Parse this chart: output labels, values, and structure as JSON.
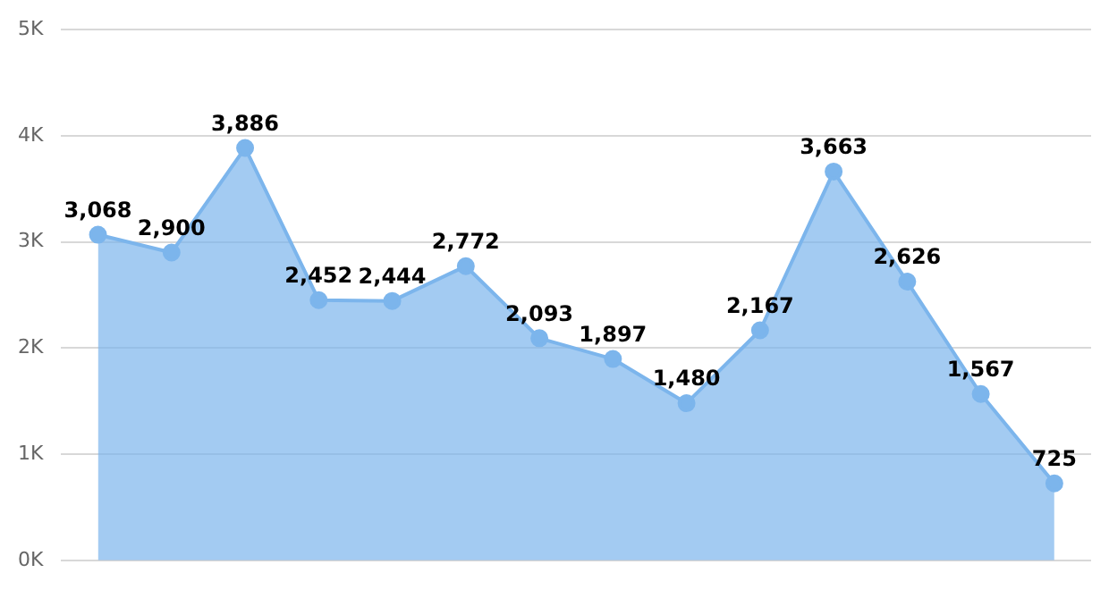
{
  "chart_data": {
    "type": "area",
    "categories": [
      null,
      null,
      null,
      null,
      null,
      null,
      null,
      null,
      null,
      null,
      null,
      null,
      null,
      null
    ],
    "series": [
      {
        "color": "#7cb5ec",
        "values": [
          3068,
          2900,
          3886,
          2452,
          2444,
          2772,
          2093,
          1897,
          1480,
          2167,
          3663,
          2626,
          1567,
          725
        ],
        "value_labels": [
          "3,068",
          "2,900",
          "3,886",
          "2,452",
          "2,444",
          "2,772",
          "2,093",
          "1,897",
          "1,480",
          "2,167",
          "3,663",
          "2,626",
          "1,567",
          "725"
        ]
      }
    ],
    "ylim": [
      0,
      5000
    ],
    "yticks": [
      {
        "value": 0,
        "label": "0K"
      },
      {
        "value": 1000,
        "label": "1K"
      },
      {
        "value": 2000,
        "label": "2K"
      },
      {
        "value": 3000,
        "label": "3K"
      },
      {
        "value": 4000,
        "label": "4K"
      },
      {
        "value": 5000,
        "label": "5K"
      }
    ],
    "grid": "y",
    "tick_labels": "y",
    "marker": "circle",
    "legend": false
  }
}
